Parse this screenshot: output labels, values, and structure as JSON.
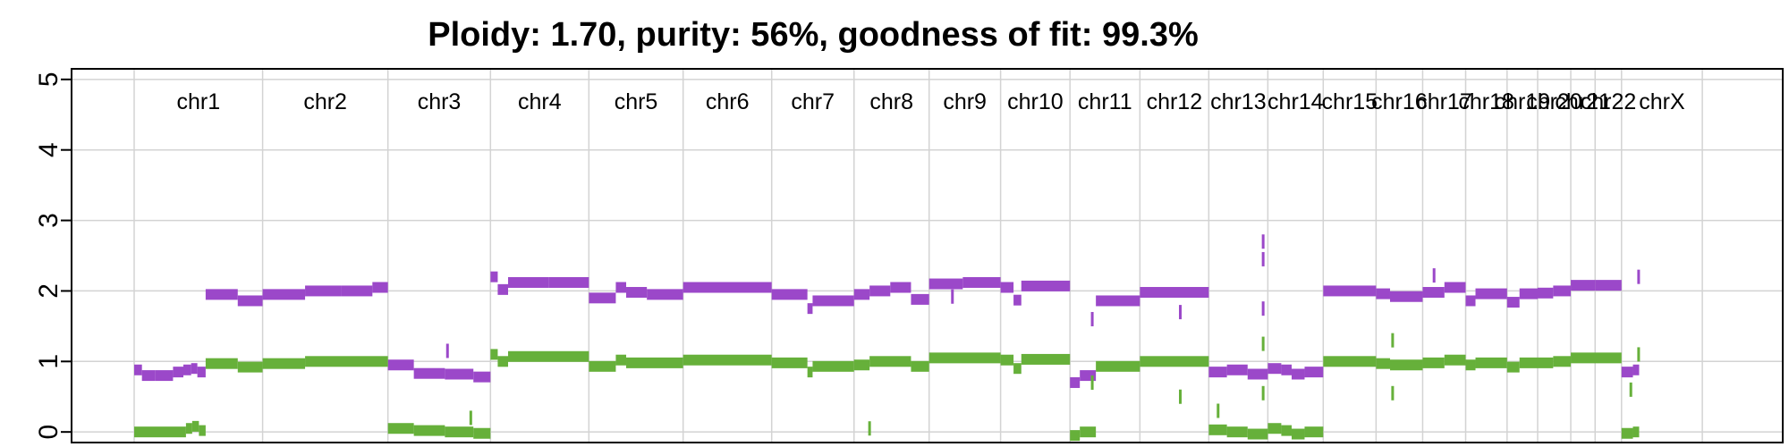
{
  "chart_data": {
    "type": "scatter",
    "title": "Ploidy: 1.70, purity: 56%, goodness of fit: 99.3%",
    "xlabel": "",
    "ylabel": "",
    "ylim": [
      -0.15,
      5.15
    ],
    "y_ticks": [
      0,
      1,
      2,
      3,
      4,
      5
    ],
    "grid": true,
    "colors": {
      "total": "#9b48c9",
      "minor": "#66b03a",
      "grid": "#d3d3d3"
    },
    "genome_span": [
      0,
      3071
    ],
    "chromosomes": [
      {
        "label": "chr1",
        "start": 0,
        "end": 248
      },
      {
        "label": "chr2",
        "start": 248,
        "end": 490
      },
      {
        "label": "chr3",
        "start": 490,
        "end": 688
      },
      {
        "label": "chr4",
        "start": 688,
        "end": 878
      },
      {
        "label": "chr5",
        "start": 878,
        "end": 1060
      },
      {
        "label": "chr6",
        "start": 1060,
        "end": 1231
      },
      {
        "label": "chr7",
        "start": 1231,
        "end": 1390
      },
      {
        "label": "chr8",
        "start": 1390,
        "end": 1535
      },
      {
        "label": "chr9",
        "start": 1535,
        "end": 1673
      },
      {
        "label": "chr10",
        "start": 1673,
        "end": 1807
      },
      {
        "label": "chr11",
        "start": 1807,
        "end": 1942
      },
      {
        "label": "chr12",
        "start": 1942,
        "end": 2075
      },
      {
        "label": "chr13",
        "start": 2075,
        "end": 2189
      },
      {
        "label": "chr14",
        "start": 2189,
        "end": 2296
      },
      {
        "label": "chr15",
        "start": 2296,
        "end": 2398
      },
      {
        "label": "chr16",
        "start": 2398,
        "end": 2488
      },
      {
        "label": "chr17",
        "start": 2488,
        "end": 2571
      },
      {
        "label": "chr18",
        "start": 2571,
        "end": 2651
      },
      {
        "label": "chr19",
        "start": 2651,
        "end": 2710
      },
      {
        "label": "chr20",
        "start": 2710,
        "end": 2774
      },
      {
        "label": "chr21",
        "start": 2774,
        "end": 2821
      },
      {
        "label": "chr22",
        "start": 2821,
        "end": 2872
      },
      {
        "label": "chrX",
        "start": 2872,
        "end": 3028
      }
    ],
    "series": [
      {
        "name": "",
        "segments": [
          [
            0,
            15,
            0.88
          ],
          [
            15,
            40,
            0.8
          ],
          [
            40,
            75,
            0.8
          ],
          [
            75,
            95,
            0.85
          ],
          [
            95,
            110,
            0.88
          ],
          [
            110,
            122,
            0.9
          ],
          [
            122,
            138,
            0.85
          ],
          [
            138,
            200,
            1.95
          ],
          [
            200,
            248,
            1.86
          ],
          [
            248,
            330,
            1.95
          ],
          [
            330,
            400,
            2.0
          ],
          [
            400,
            460,
            2.0
          ],
          [
            460,
            490,
            2.05
          ],
          [
            490,
            540,
            0.95
          ],
          [
            540,
            600,
            0.83
          ],
          [
            600,
            655,
            0.82
          ],
          [
            655,
            688,
            0.78
          ],
          [
            688,
            702,
            2.2
          ],
          [
            702,
            722,
            2.02
          ],
          [
            722,
            800,
            2.12
          ],
          [
            800,
            878,
            2.12
          ],
          [
            878,
            930,
            1.9
          ],
          [
            930,
            950,
            2.05
          ],
          [
            950,
            990,
            1.98
          ],
          [
            990,
            1060,
            1.95
          ],
          [
            1060,
            1231,
            2.05
          ],
          [
            1231,
            1300,
            1.95
          ],
          [
            1300,
            1310,
            1.75
          ],
          [
            1310,
            1390,
            1.86
          ],
          [
            1390,
            1420,
            1.95
          ],
          [
            1420,
            1460,
            2.0
          ],
          [
            1460,
            1500,
            2.05
          ],
          [
            1500,
            1535,
            1.88
          ],
          [
            1535,
            1600,
            2.1
          ],
          [
            1600,
            1673,
            2.12
          ],
          [
            1673,
            1698,
            2.05
          ],
          [
            1698,
            1713,
            1.87
          ],
          [
            1713,
            1807,
            2.07
          ],
          [
            1807,
            1826,
            0.7
          ],
          [
            1826,
            1857,
            0.8
          ],
          [
            1857,
            1942,
            1.86
          ],
          [
            1942,
            2075,
            1.98
          ],
          [
            2075,
            2110,
            0.85
          ],
          [
            2110,
            2150,
            0.88
          ],
          [
            2150,
            2189,
            0.82
          ],
          [
            2189,
            2215,
            0.9
          ],
          [
            2215,
            2235,
            0.88
          ],
          [
            2235,
            2260,
            0.82
          ],
          [
            2260,
            2296,
            0.85
          ],
          [
            2296,
            2398,
            2.0
          ],
          [
            2398,
            2425,
            1.96
          ],
          [
            2425,
            2488,
            1.92
          ],
          [
            2488,
            2530,
            1.98
          ],
          [
            2530,
            2571,
            2.05
          ],
          [
            2571,
            2590,
            1.86
          ],
          [
            2590,
            2651,
            1.96
          ],
          [
            2651,
            2675,
            1.84
          ],
          [
            2675,
            2710,
            1.96
          ],
          [
            2710,
            2740,
            1.97
          ],
          [
            2740,
            2774,
            2.0
          ],
          [
            2774,
            2821,
            2.08
          ],
          [
            2821,
            2872,
            2.08
          ],
          [
            2872,
            2894,
            0.85
          ],
          [
            2894,
            2906,
            0.88
          ]
        ]
      },
      {
        "name": "",
        "segments": [
          [
            0,
            100,
            0.0
          ],
          [
            100,
            112,
            0.05
          ],
          [
            112,
            125,
            0.08
          ],
          [
            125,
            138,
            0.02
          ],
          [
            138,
            200,
            0.97
          ],
          [
            200,
            248,
            0.92
          ],
          [
            248,
            330,
            0.97
          ],
          [
            330,
            490,
            1.0
          ],
          [
            490,
            540,
            0.05
          ],
          [
            540,
            600,
            0.02
          ],
          [
            600,
            655,
            0.0
          ],
          [
            655,
            688,
            -0.02
          ],
          [
            688,
            702,
            1.1
          ],
          [
            702,
            722,
            1.0
          ],
          [
            722,
            878,
            1.07
          ],
          [
            878,
            930,
            0.93
          ],
          [
            930,
            950,
            1.02
          ],
          [
            950,
            1060,
            0.98
          ],
          [
            1060,
            1231,
            1.02
          ],
          [
            1231,
            1300,
            0.98
          ],
          [
            1300,
            1310,
            0.85
          ],
          [
            1310,
            1390,
            0.93
          ],
          [
            1390,
            1420,
            0.95
          ],
          [
            1420,
            1500,
            1.0
          ],
          [
            1500,
            1535,
            0.93
          ],
          [
            1535,
            1673,
            1.05
          ],
          [
            1673,
            1698,
            1.02
          ],
          [
            1698,
            1713,
            0.9
          ],
          [
            1713,
            1807,
            1.03
          ],
          [
            1807,
            1826,
            -0.05
          ],
          [
            1826,
            1857,
            0.0
          ],
          [
            1857,
            1942,
            0.93
          ],
          [
            1942,
            2075,
            1.0
          ],
          [
            2075,
            2110,
            0.03
          ],
          [
            2110,
            2150,
            0.0
          ],
          [
            2150,
            2189,
            -0.03
          ],
          [
            2189,
            2215,
            0.05
          ],
          [
            2215,
            2235,
            0.02
          ],
          [
            2235,
            2260,
            -0.03
          ],
          [
            2260,
            2296,
            0.0
          ],
          [
            2296,
            2398,
            1.0
          ],
          [
            2398,
            2425,
            0.97
          ],
          [
            2425,
            2488,
            0.95
          ],
          [
            2488,
            2530,
            0.98
          ],
          [
            2530,
            2571,
            1.02
          ],
          [
            2571,
            2590,
            0.95
          ],
          [
            2590,
            2651,
            0.98
          ],
          [
            2651,
            2675,
            0.92
          ],
          [
            2675,
            2710,
            0.98
          ],
          [
            2710,
            2740,
            0.98
          ],
          [
            2740,
            2774,
            1.0
          ],
          [
            2774,
            2872,
            1.05
          ],
          [
            2872,
            2894,
            -0.02
          ],
          [
            2894,
            2906,
            0.0
          ]
        ]
      }
    ],
    "outlier_marks": [
      {
        "series": 0,
        "x": 2180,
        "y": 2.7
      },
      {
        "series": 0,
        "x": 2180,
        "y": 2.45
      },
      {
        "series": 0,
        "x": 2180,
        "y": 1.75
      },
      {
        "series": 0,
        "x": 1850,
        "y": 1.6
      },
      {
        "series": 0,
        "x": 2020,
        "y": 1.7
      },
      {
        "series": 0,
        "x": 2510,
        "y": 2.22
      },
      {
        "series": 0,
        "x": 605,
        "y": 1.15
      },
      {
        "series": 0,
        "x": 2905,
        "y": 2.2
      },
      {
        "series": 0,
        "x": 1580,
        "y": 1.92
      },
      {
        "series": 1,
        "x": 2180,
        "y": 1.25
      },
      {
        "series": 1,
        "x": 2180,
        "y": 0.55
      },
      {
        "series": 1,
        "x": 2020,
        "y": 0.5
      },
      {
        "series": 1,
        "x": 2430,
        "y": 1.3
      },
      {
        "series": 1,
        "x": 2430,
        "y": 0.55
      },
      {
        "series": 1,
        "x": 2093,
        "y": 0.3
      },
      {
        "series": 1,
        "x": 1850,
        "y": 0.7
      },
      {
        "series": 1,
        "x": 650,
        "y": 0.2
      },
      {
        "series": 1,
        "x": 2905,
        "y": 1.1
      },
      {
        "series": 1,
        "x": 2890,
        "y": 0.6
      },
      {
        "series": 1,
        "x": 1420,
        "y": 0.05
      }
    ]
  }
}
